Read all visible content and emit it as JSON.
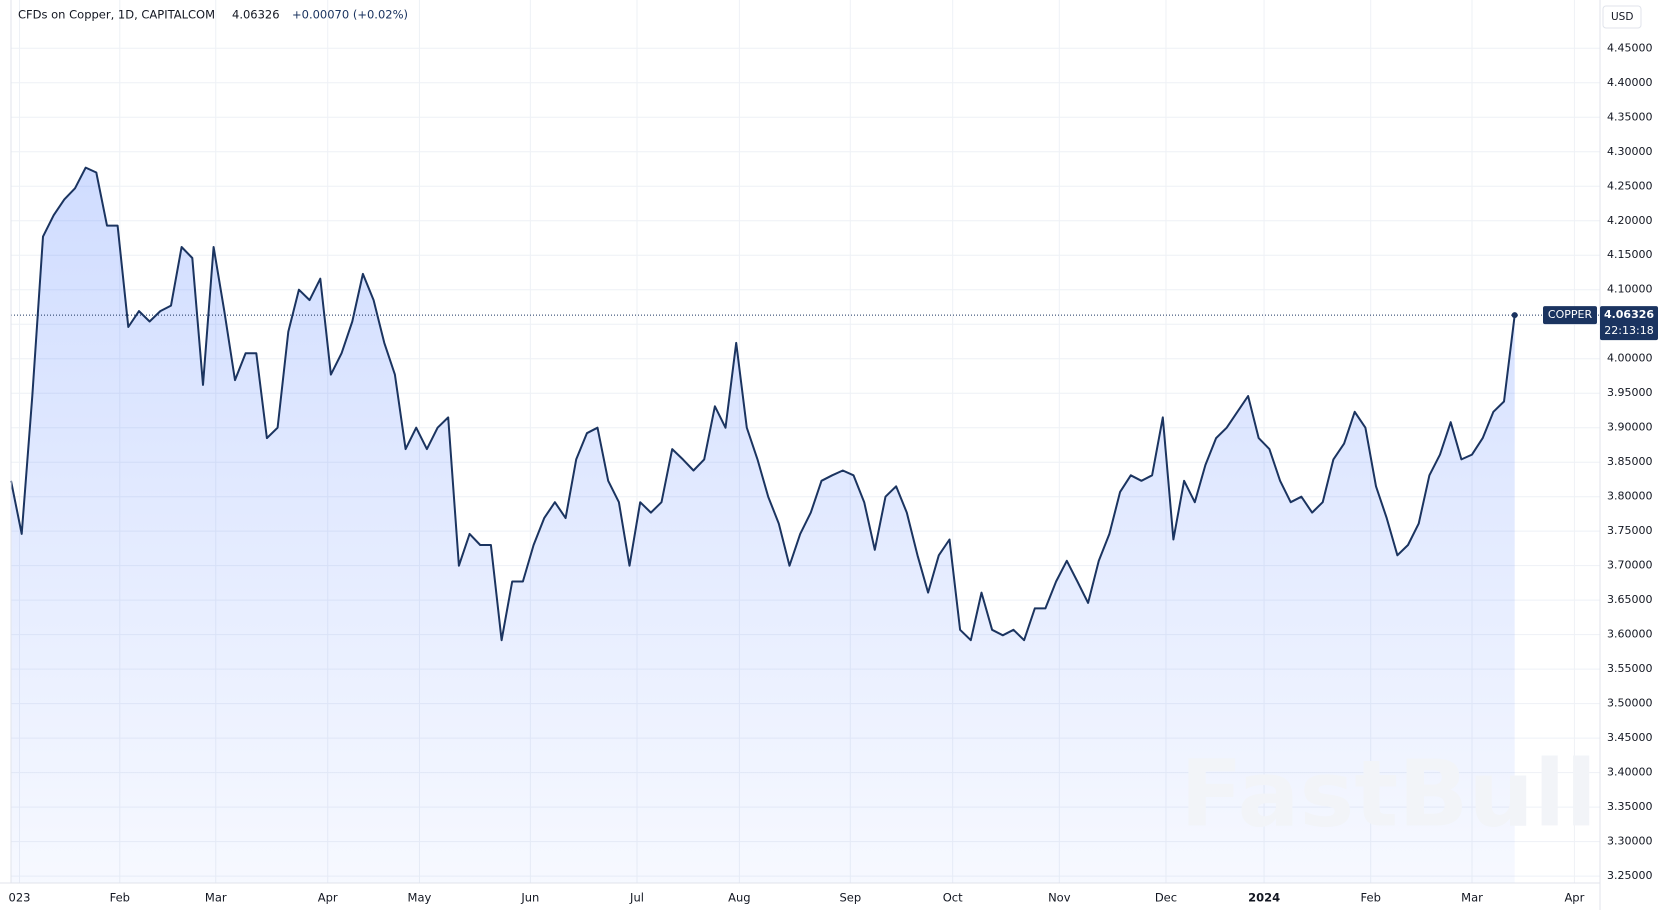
{
  "chart_data": {
    "type": "line",
    "title": "CFDs on Copper, 1D, CAPITALCOM",
    "last": "4.06326",
    "change": "+0.00070 (+0.02%)",
    "currency": "USD",
    "watermark": "FastBull",
    "last_label": {
      "name": "COPPER",
      "value": 4.06326,
      "time": "22:13:18"
    },
    "series": [
      {
        "name": "COPPER",
        "color": "#1b3460",
        "values": [
          3.823,
          3.746,
          3.946,
          4.177,
          4.208,
          4.231,
          4.247,
          4.277,
          4.27,
          4.193,
          4.193,
          4.046,
          4.069,
          4.054,
          4.069,
          4.077,
          4.162,
          4.146,
          3.962,
          4.162,
          4.069,
          3.969,
          4.008,
          4.008,
          3.885,
          3.9,
          4.039,
          4.1,
          4.085,
          4.116,
          3.977,
          4.008,
          4.054,
          4.123,
          4.085,
          4.023,
          3.977,
          3.869,
          3.9,
          3.869,
          3.9,
          3.915,
          3.7,
          3.746,
          3.73,
          3.73,
          3.592,
          3.677,
          3.677,
          3.73,
          3.769,
          3.792,
          3.769,
          3.854,
          3.892,
          3.9,
          3.823,
          3.792,
          3.7,
          3.792,
          3.777,
          3.792,
          3.869,
          3.854,
          3.838,
          3.854,
          3.931,
          3.9,
          4.023,
          3.9,
          3.854,
          3.8,
          3.761,
          3.7,
          3.746,
          3.777,
          3.823,
          3.831,
          3.838,
          3.831,
          3.792,
          3.723,
          3.8,
          3.815,
          3.777,
          3.715,
          3.661,
          3.715,
          3.738,
          3.607,
          3.592,
          3.661,
          3.607,
          3.599,
          3.607,
          3.592,
          3.638,
          3.638,
          3.677,
          3.707,
          3.677,
          3.646,
          3.707,
          3.746,
          3.807,
          3.831,
          3.823,
          3.831,
          3.915,
          3.738,
          3.823,
          3.792,
          3.846,
          3.885,
          3.9,
          3.923,
          3.946,
          3.885,
          3.869,
          3.823,
          3.792,
          3.8,
          3.777,
          3.792,
          3.854,
          3.877,
          3.923,
          3.9,
          3.815,
          3.769,
          3.715,
          3.73,
          3.761,
          3.831,
          3.861,
          3.908,
          3.854,
          3.861,
          3.885,
          3.923,
          3.938,
          4.06326
        ]
      }
    ],
    "xlim": [
      0,
      149
    ],
    "xticks": [
      {
        "value": 0.8,
        "label": "023"
      },
      {
        "value": 10.2,
        "label": "Feb"
      },
      {
        "value": 19.2,
        "label": "Mar"
      },
      {
        "value": 29.7,
        "label": "Apr"
      },
      {
        "value": 38.3,
        "label": "May"
      },
      {
        "value": 48.7,
        "label": "Jun"
      },
      {
        "value": 58.7,
        "label": "Jul"
      },
      {
        "value": 68.3,
        "label": "Aug"
      },
      {
        "value": 78.7,
        "label": "Sep"
      },
      {
        "value": 88.3,
        "label": "Oct"
      },
      {
        "value": 98.3,
        "label": "Nov"
      },
      {
        "value": 108.3,
        "label": "Dec"
      },
      {
        "value": 117.5,
        "label": "2024"
      },
      {
        "value": 127.5,
        "label": "Feb"
      },
      {
        "value": 137,
        "label": "Mar"
      },
      {
        "value": 146.6,
        "label": "Apr"
      }
    ],
    "ylim": [
      3.24,
      4.52
    ],
    "yticks": [
      {
        "value": 3.25,
        "label": "3.25000"
      },
      {
        "value": 3.3,
        "label": "3.30000"
      },
      {
        "value": 3.35,
        "label": "3.35000"
      },
      {
        "value": 3.4,
        "label": "3.40000"
      },
      {
        "value": 3.45,
        "label": "3.45000"
      },
      {
        "value": 3.5,
        "label": "3.50000"
      },
      {
        "value": 3.55,
        "label": "3.55000"
      },
      {
        "value": 3.6,
        "label": "3.60000"
      },
      {
        "value": 3.65,
        "label": "3.65000"
      },
      {
        "value": 3.7,
        "label": "3.70000"
      },
      {
        "value": 3.75,
        "label": "3.75000"
      },
      {
        "value": 3.8,
        "label": "3.80000"
      },
      {
        "value": 3.85,
        "label": "3.85000"
      },
      {
        "value": 3.9,
        "label": "3.90000"
      },
      {
        "value": 3.95,
        "label": "3.95000"
      },
      {
        "value": 4.0,
        "label": "4.00000"
      },
      {
        "value": 4.05,
        "label": "4.05000"
      },
      {
        "value": 4.1,
        "label": "4.10000"
      },
      {
        "value": 4.15,
        "label": "4.15000"
      },
      {
        "value": 4.2,
        "label": "4.20000"
      },
      {
        "value": 4.25,
        "label": "4.25000"
      },
      {
        "value": 4.3,
        "label": "4.30000"
      },
      {
        "value": 4.35,
        "label": "4.35000"
      },
      {
        "value": 4.4,
        "label": "4.40000"
      },
      {
        "value": 4.45,
        "label": "4.45000"
      }
    ],
    "grid": true
  }
}
